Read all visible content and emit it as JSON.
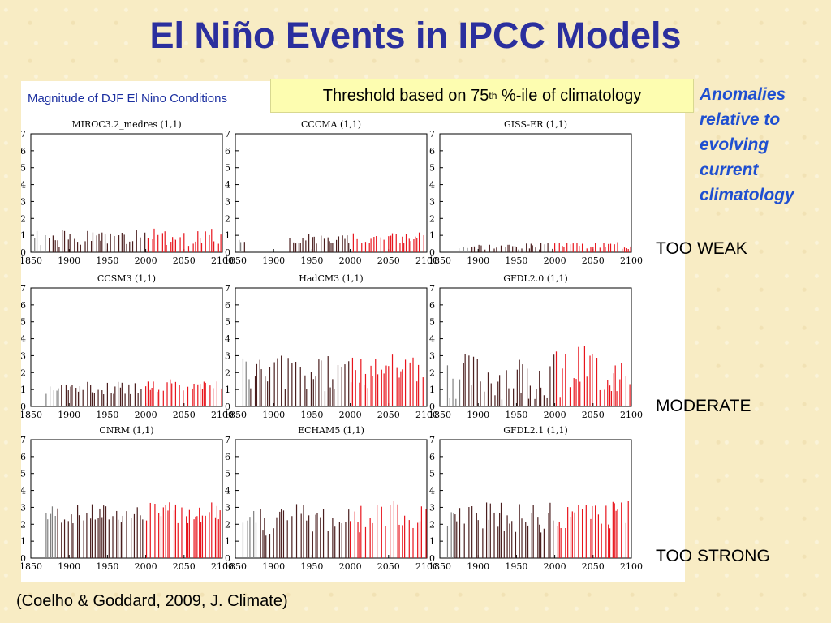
{
  "slide": {
    "title": "El Niño Events in IPCC Models",
    "threshold_box": {
      "text": "Threshold based on 75",
      "sup": "th",
      "tail": " %-ile of climatology"
    },
    "anomalies_note": [
      "Anomalies",
      "relative to",
      "evolving",
      "current",
      "climatology"
    ],
    "row_labels": [
      "TOO WEAK",
      "MODERATE",
      "TOO STRONG"
    ],
    "citation": "(Coelho & Goddard, 2009, J. Climate)"
  },
  "colors": {
    "title": "#2b2f9e",
    "historical": "#4a1e1e",
    "future": "#e8141c",
    "early": "#808080",
    "note": "#1f4fd0"
  },
  "chart_data": {
    "type": "bar",
    "figure_title": "Magnitude of DJF El Nino Conditions",
    "xlim": [
      1850,
      2100
    ],
    "ylim": [
      0,
      7
    ],
    "x_ticks": [
      1850,
      1900,
      1950,
      2000,
      2050,
      2100
    ],
    "y_ticks": [
      0,
      1,
      2,
      3,
      4,
      5,
      6,
      7
    ],
    "panels": [
      {
        "name": "MIROC3.2_medres (1,1)",
        "start": 1855,
        "mean": 0.8,
        "spread": 0.5,
        "gray_until": 1870,
        "seed": 1
      },
      {
        "name": "CCCMA (1,1)",
        "start": 1855,
        "mean": 0.8,
        "spread": 0.3,
        "gray_until": 1860,
        "seed": 2,
        "gap": [
          1865,
          1920
        ]
      },
      {
        "name": "GISS-ER (1,1)",
        "start": 1875,
        "mean": 0.35,
        "spread": 0.2,
        "gray_until": 1890,
        "seed": 3
      },
      {
        "name": "CCSM3 (1,1)",
        "start": 1870,
        "mean": 1.1,
        "spread": 0.4,
        "gray_until": 1890,
        "seed": 4
      },
      {
        "name": "HadCM3 (1,1)",
        "start": 1860,
        "mean": 1.9,
        "spread": 1.2,
        "gray_until": 1870,
        "seed": 5
      },
      {
        "name": "GFDL2.0 (1,1)",
        "start": 1860,
        "mean": 1.8,
        "spread": 1.4,
        "gray_until": 1880,
        "seed": 6
      },
      {
        "name": "CNRM (1,1)",
        "start": 1870,
        "mean": 2.6,
        "spread": 0.6,
        "gray_until": 1885,
        "seed": 7
      },
      {
        "name": "ECHAM5 (1,1)",
        "start": 1860,
        "mean": 2.3,
        "spread": 1.0,
        "gray_until": 1880,
        "seed": 8
      },
      {
        "name": "GFDL2.1 (1,1)",
        "start": 1860,
        "mean": 2.4,
        "spread": 0.9,
        "gray_until": 1870,
        "seed": 9
      }
    ]
  }
}
